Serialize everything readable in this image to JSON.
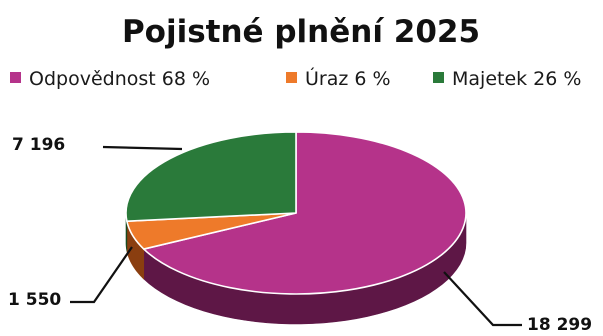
{
  "chart_data": {
    "type": "pie",
    "title": "Pojistné plnění 2025",
    "legend_position": "top",
    "legend": [
      "Odpovědnost 68 %",
      "Úraz 6 %",
      "Majetek 26 %"
    ],
    "categories": [
      "Odpovědnost",
      "Úraz",
      "Majetek"
    ],
    "values": [
      18299,
      1550,
      7196
    ],
    "data_labels": [
      "18 299",
      "1 550",
      "7 196"
    ],
    "percent_labels": [
      "68 %",
      "6 %",
      "26 %"
    ],
    "colors": [
      "#b5338a",
      "#ee7a2a",
      "#2a7a3a"
    ],
    "dark_colors": [
      "#5e1746",
      "#8a3e10",
      "#154a20"
    ]
  }
}
